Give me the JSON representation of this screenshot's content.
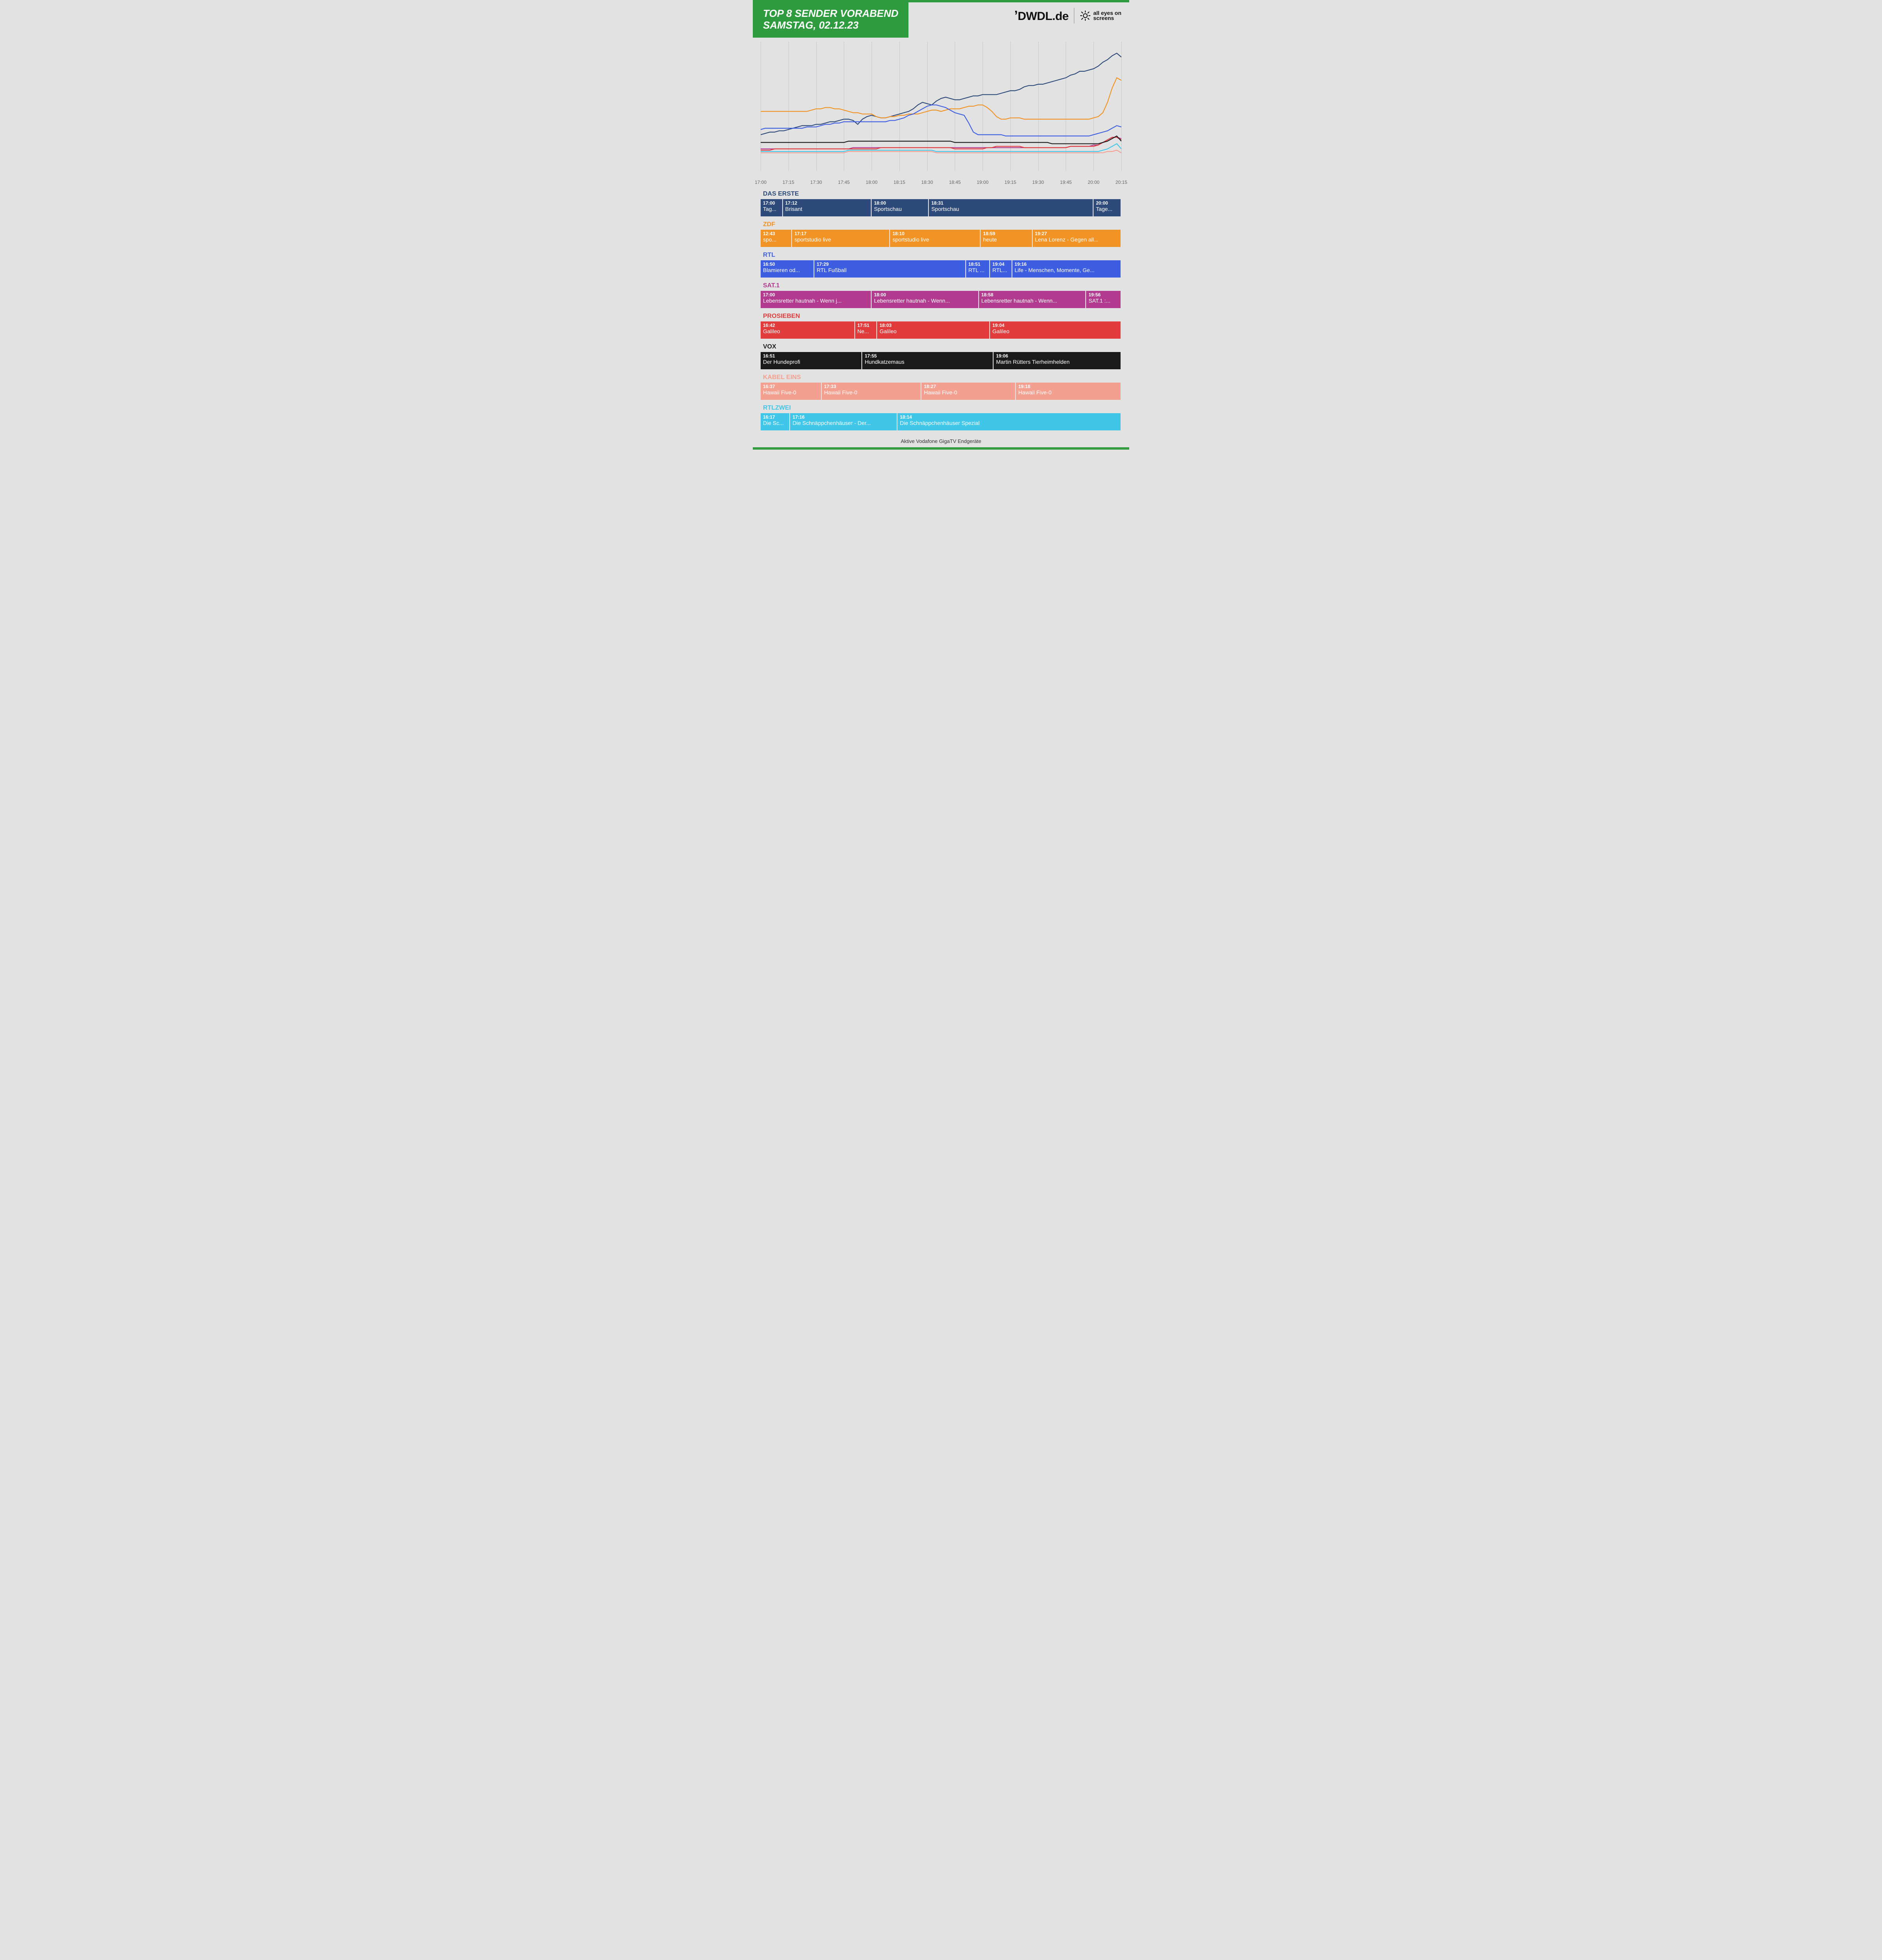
{
  "title_line1": "TOP 8 SENDER VORABEND",
  "title_line2": "SAMSTAG, 02.12.23",
  "brand_dwdl": "DWDL.de",
  "brand_aeos_l1": "all eyes on",
  "brand_aeos_l2": "screens",
  "footer": "Aktive Vodafone GigaTV Endgeräte",
  "colors": {
    "accent_green": "#2e9c3e",
    "bg": "#e2e2e2",
    "grid": "#c8c8c8",
    "xlabel": "#666666"
  },
  "chart": {
    "type": "line",
    "x_start_min": 1020,
    "x_end_min": 1215,
    "x_ticks": [
      "17:00",
      "17:15",
      "17:30",
      "17:45",
      "18:00",
      "18:15",
      "18:30",
      "18:45",
      "19:00",
      "19:15",
      "19:30",
      "19:45",
      "20:00",
      "20:15"
    ],
    "ylim": [
      0,
      100
    ],
    "line_width": 2.2,
    "series": [
      {
        "name": "das_erste",
        "color": "#2d4a7a",
        "values": [
          28,
          29,
          30,
          30,
          31,
          31,
          32,
          33,
          34,
          35,
          35,
          35,
          36,
          36,
          37,
          38,
          38,
          39,
          40,
          40,
          39,
          36,
          40,
          42,
          43,
          42,
          41,
          41,
          42,
          43,
          44,
          45,
          46,
          48,
          51,
          53,
          52,
          51,
          54,
          56,
          57,
          56,
          55,
          55,
          56,
          57,
          58,
          58,
          59,
          59,
          59,
          59,
          60,
          61,
          62,
          62,
          63,
          65,
          66,
          66,
          67,
          67,
          68,
          69,
          70,
          71,
          72,
          74,
          75,
          77,
          77,
          78,
          79,
          81,
          84,
          86,
          89,
          91,
          88
        ]
      },
      {
        "name": "zdf",
        "color": "#f29325",
        "values": [
          46,
          46,
          46,
          46,
          46,
          46,
          46,
          46,
          46,
          46,
          46,
          47,
          48,
          48,
          49,
          49,
          48,
          48,
          47,
          46,
          45,
          45,
          44,
          44,
          44,
          42,
          41,
          41,
          42,
          42,
          43,
          43,
          44,
          44,
          44,
          45,
          46,
          47,
          47,
          46,
          47,
          48,
          48,
          48,
          49,
          50,
          50,
          51,
          51,
          49,
          46,
          42,
          40,
          40,
          41,
          41,
          41,
          40,
          40,
          40,
          40,
          40,
          40,
          40,
          40,
          40,
          40,
          40,
          40,
          40,
          40,
          40,
          41,
          42,
          45,
          53,
          64,
          72,
          70
        ]
      },
      {
        "name": "rtl",
        "color": "#3d5ee0",
        "values": [
          32,
          33,
          33,
          33,
          33,
          33,
          33,
          33,
          33,
          33,
          34,
          34,
          34,
          35,
          36,
          36,
          37,
          37,
          38,
          38,
          38,
          38,
          38,
          38,
          38,
          38,
          38,
          38,
          39,
          39,
          40,
          41,
          43,
          44,
          46,
          48,
          50,
          51,
          51,
          50,
          49,
          47,
          45,
          44,
          43,
          37,
          30,
          28,
          28,
          28,
          28,
          28,
          28,
          27,
          27,
          27,
          27,
          27,
          27,
          27,
          27,
          27,
          27,
          27,
          27,
          27,
          27,
          27,
          27,
          27,
          27,
          27,
          28,
          29,
          30,
          31,
          33,
          35,
          34
        ]
      },
      {
        "name": "sat1",
        "color": "#b23b90",
        "values": [
          17,
          17,
          17,
          17,
          17,
          17,
          17,
          17,
          17,
          17,
          17,
          17,
          17,
          17,
          17,
          17,
          17,
          17,
          17,
          17,
          18,
          18,
          18,
          18,
          18,
          18,
          18,
          18,
          18,
          18,
          18,
          18,
          18,
          18,
          18,
          18,
          18,
          18,
          18,
          18,
          18,
          18,
          18,
          18,
          18,
          18,
          18,
          18,
          18,
          18,
          18,
          18,
          18,
          18,
          18,
          18,
          18,
          18,
          18,
          18,
          18,
          18,
          18,
          18,
          18,
          18,
          18,
          19,
          19,
          19,
          19,
          19,
          20,
          20,
          22,
          24,
          26,
          26,
          25
        ]
      },
      {
        "name": "prosieben",
        "color": "#e13b3b",
        "values": [
          16,
          16,
          16,
          17,
          17,
          17,
          17,
          17,
          17,
          17,
          17,
          17,
          17,
          17,
          17,
          17,
          17,
          17,
          17,
          17,
          17,
          17,
          17,
          17,
          17,
          17,
          18,
          18,
          18,
          18,
          18,
          18,
          18,
          18,
          18,
          18,
          18,
          18,
          18,
          18,
          18,
          18,
          17,
          17,
          17,
          17,
          17,
          17,
          17,
          18,
          18,
          19,
          19,
          19,
          19,
          19,
          19,
          18,
          18,
          18,
          18,
          18,
          18,
          18,
          18,
          18,
          18,
          19,
          19,
          19,
          19,
          19,
          19,
          20,
          22,
          24,
          26,
          26,
          24
        ]
      },
      {
        "name": "vox",
        "color": "#1a1a1a",
        "values": [
          22,
          22,
          22,
          22,
          22,
          22,
          22,
          22,
          22,
          22,
          22,
          22,
          22,
          22,
          22,
          22,
          22,
          22,
          22,
          23,
          23,
          23,
          23,
          23,
          23,
          23,
          23,
          23,
          23,
          23,
          23,
          23,
          23,
          23,
          23,
          23,
          23,
          23,
          23,
          23,
          23,
          23,
          22,
          22,
          22,
          22,
          22,
          22,
          22,
          22,
          22,
          22,
          22,
          22,
          22,
          22,
          22,
          22,
          22,
          22,
          22,
          22,
          22,
          21,
          21,
          21,
          21,
          21,
          21,
          21,
          21,
          21,
          21,
          21,
          22,
          23,
          25,
          27,
          23
        ]
      },
      {
        "name": "kabeleins",
        "color": "#f4a090",
        "values": [
          14,
          14,
          14,
          14,
          14,
          14,
          14,
          14,
          14,
          14,
          14,
          14,
          14,
          14,
          14,
          14,
          14,
          14,
          14,
          15,
          15,
          15,
          15,
          15,
          15,
          15,
          15,
          15,
          15,
          15,
          15,
          15,
          15,
          15,
          15,
          15,
          15,
          15,
          14,
          14,
          14,
          14,
          14,
          14,
          14,
          14,
          14,
          14,
          14,
          14,
          14,
          14,
          14,
          14,
          14,
          14,
          14,
          14,
          14,
          14,
          14,
          14,
          14,
          14,
          14,
          14,
          14,
          14,
          14,
          14,
          14,
          14,
          14,
          14,
          14,
          15,
          15,
          16,
          14
        ]
      },
      {
        "name": "rtlzwei",
        "color": "#3fc6e8",
        "values": [
          15,
          15,
          15,
          15,
          15,
          15,
          15,
          15,
          15,
          15,
          15,
          15,
          15,
          15,
          15,
          15,
          15,
          15,
          15,
          16,
          16,
          16,
          16,
          16,
          16,
          16,
          16,
          16,
          16,
          16,
          16,
          16,
          16,
          16,
          16,
          16,
          16,
          16,
          15,
          15,
          15,
          15,
          15,
          15,
          15,
          15,
          15,
          15,
          15,
          15,
          15,
          15,
          15,
          15,
          15,
          15,
          15,
          15,
          15,
          15,
          15,
          15,
          15,
          15,
          15,
          15,
          15,
          15,
          15,
          15,
          15,
          15,
          15,
          15,
          16,
          17,
          19,
          21,
          17
        ]
      }
    ]
  },
  "channels": [
    {
      "id": "das_erste",
      "label": "DAS ERSTE",
      "color": "#2d4a7a",
      "programs": [
        {
          "start": 1020,
          "label": "17:00",
          "name": "Tag..."
        },
        {
          "start": 1032,
          "label": "17:12",
          "name": "Brisant"
        },
        {
          "start": 1080,
          "label": "18:00",
          "name": "Sportschau"
        },
        {
          "start": 1111,
          "label": "18:31",
          "name": "Sportschau"
        },
        {
          "start": 1200,
          "label": "20:00",
          "name": "Tage..."
        }
      ]
    },
    {
      "id": "zdf",
      "label": "ZDF",
      "color": "#f29325",
      "programs": [
        {
          "start": 1020,
          "label": "12:43",
          "name": "spo..."
        },
        {
          "start": 1037,
          "label": "17:17",
          "name": "sportstudio live"
        },
        {
          "start": 1090,
          "label": "18:10",
          "name": "sportstudio live"
        },
        {
          "start": 1139,
          "label": "18:59",
          "name": "heute"
        },
        {
          "start": 1167,
          "label": "19:27",
          "name": "Lena Lorenz - Gegen all..."
        }
      ]
    },
    {
      "id": "rtl",
      "label": "RTL",
      "color": "#3d5ee0",
      "programs": [
        {
          "start": 1020,
          "label": "16:50",
          "name": "Blamieren od..."
        },
        {
          "start": 1049,
          "label": "17:29",
          "name": "RTL Fußball"
        },
        {
          "start": 1131,
          "label": "18:51",
          "name": "RTL ..."
        },
        {
          "start": 1144,
          "label": "19:04",
          "name": "RTL..."
        },
        {
          "start": 1156,
          "label": "19:16",
          "name": "Life - Menschen, Momente, Ge..."
        }
      ]
    },
    {
      "id": "sat1",
      "label": "SAT.1",
      "color": "#b23b90",
      "programs": [
        {
          "start": 1020,
          "label": "17:00",
          "name": "Lebensretter hautnah - Wenn j..."
        },
        {
          "start": 1080,
          "label": "18:00",
          "name": "Lebensretter hautnah - Wenn..."
        },
        {
          "start": 1138,
          "label": "18:58",
          "name": "Lebensretter hautnah - Wenn..."
        },
        {
          "start": 1196,
          "label": "19:56",
          "name": "SAT.1 :..."
        }
      ]
    },
    {
      "id": "prosieben",
      "label": "PROSIEBEN",
      "color": "#e13b3b",
      "programs": [
        {
          "start": 1020,
          "label": "16:42",
          "name": "Galileo"
        },
        {
          "start": 1071,
          "label": "17:51",
          "name": "Ne..."
        },
        {
          "start": 1083,
          "label": "18:03",
          "name": "Galileo"
        },
        {
          "start": 1144,
          "label": "19:04",
          "name": "Galileo"
        }
      ]
    },
    {
      "id": "vox",
      "label": "VOX",
      "color": "#1a1a1a",
      "programs": [
        {
          "start": 1020,
          "label": "16:51",
          "name": "Der Hundeprofi"
        },
        {
          "start": 1075,
          "label": "17:55",
          "name": "Hundkatzemaus"
        },
        {
          "start": 1146,
          "label": "19:06",
          "name": "Martin Rütters Tierheimhelden"
        }
      ]
    },
    {
      "id": "kabeleins",
      "label": "KABEL EINS",
      "color": "#f4a090",
      "programs": [
        {
          "start": 1020,
          "label": "16:37",
          "name": "Hawaii Five-0"
        },
        {
          "start": 1053,
          "label": "17:33",
          "name": "Hawaii Five-0"
        },
        {
          "start": 1107,
          "label": "18:27",
          "name": "Hawaii Five-0"
        },
        {
          "start": 1158,
          "label": "19:18",
          "name": "Hawaii Five-0"
        }
      ]
    },
    {
      "id": "rtlzwei",
      "label": "RTLZWEI",
      "color": "#3fc6e8",
      "programs": [
        {
          "start": 1020,
          "label": "16:17",
          "name": "Die Sc..."
        },
        {
          "start": 1036,
          "label": "17:16",
          "name": "Die Schnäppchenhäuser - Der..."
        },
        {
          "start": 1094,
          "label": "18:14",
          "name": "Die Schnäppchenhäuser Spezial"
        }
      ]
    }
  ]
}
